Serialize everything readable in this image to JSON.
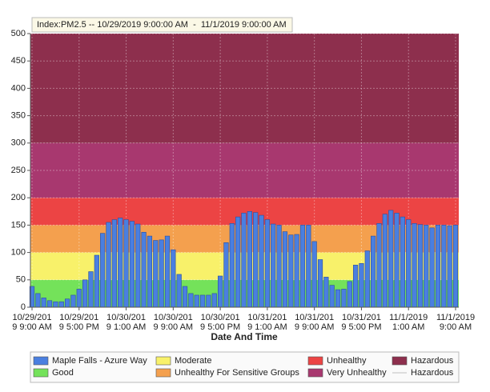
{
  "chart_data": {
    "type": "bar",
    "title": "Index:PM2.5 -- 10/29/2019 9:00:00 AM  -  11/1/2019 9:00:00 AM",
    "x_label": "Date And Time",
    "series": [
      {
        "name": "Maple Falls - Azure Way",
        "color": "#4a7fe0",
        "values": [
          38,
          25,
          17,
          12,
          10,
          10,
          15,
          22,
          33,
          50,
          65,
          95,
          135,
          155,
          160,
          163,
          160,
          157,
          152,
          137,
          130,
          122,
          123,
          130,
          105,
          60,
          38,
          25,
          22,
          22,
          22,
          25,
          57,
          118,
          153,
          165,
          172,
          175,
          173,
          168,
          160,
          152,
          150,
          138,
          132,
          133,
          150,
          150,
          120,
          87,
          55,
          40,
          32,
          33,
          47,
          77,
          80,
          103,
          130,
          153,
          170,
          177,
          172,
          165,
          160,
          153,
          151,
          150,
          145,
          150,
          150,
          149,
          150
        ]
      }
    ],
    "bands": [
      {
        "name": "Good",
        "color": "#74e25a",
        "range": [
          0,
          50
        ]
      },
      {
        "name": "Moderate",
        "color": "#f8f16a",
        "range": [
          50,
          100
        ]
      },
      {
        "name": "Unhealthy For Sensitive Groups",
        "color": "#f4a04e",
        "range": [
          100,
          150
        ]
      },
      {
        "name": "Unhealthy",
        "color": "#ec4444",
        "range": [
          150,
          200
        ]
      },
      {
        "name": "Very Unhealthy",
        "color": "#a8386f",
        "range": [
          200,
          300
        ]
      },
      {
        "name": "Hazardous",
        "color": "#8d2f4d",
        "range": [
          300,
          500
        ]
      }
    ],
    "threshold_line": {
      "name": "Hazardous",
      "color": "#dddddd"
    },
    "xlim": [
      0,
      72
    ],
    "xticks": [
      {
        "value": 0,
        "label": [
          "10/29/201",
          "9 9:00 AM"
        ]
      },
      {
        "value": 8,
        "label": [
          "10/29/201",
          "9 5:00 PM"
        ]
      },
      {
        "value": 16,
        "label": [
          "10/30/201",
          "9 1:00 AM"
        ]
      },
      {
        "value": 24,
        "label": [
          "10/30/201",
          "9 9:00 AM"
        ]
      },
      {
        "value": 32,
        "label": [
          "10/30/201",
          "9 5:00 PM"
        ]
      },
      {
        "value": 40,
        "label": [
          "10/31/201",
          "9 1:00 AM"
        ]
      },
      {
        "value": 48,
        "label": [
          "10/31/201",
          "9 9:00 AM"
        ]
      },
      {
        "value": 56,
        "label": [
          "10/31/201",
          "9 5:00 PM"
        ]
      },
      {
        "value": 64,
        "label": [
          "11/1/2019",
          "1:00 AM"
        ]
      },
      {
        "value": 72,
        "label": [
          "11/1/2019",
          "9:00 AM"
        ]
      }
    ],
    "ylim": [
      0,
      500
    ],
    "yticks": [
      0,
      50,
      100,
      150,
      200,
      250,
      300,
      350,
      400,
      450,
      500
    ],
    "grid": true
  }
}
